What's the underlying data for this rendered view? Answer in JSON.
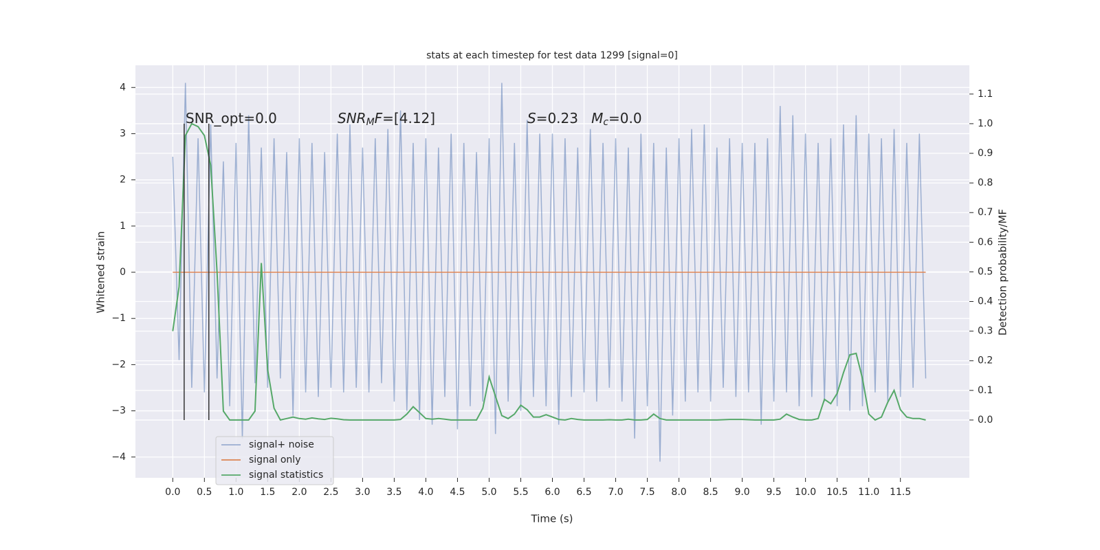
{
  "chart_data": {
    "type": "line",
    "title": "stats at each timestep for test data 1299 [signal=0]",
    "xlabel": "Time (s)",
    "ylabel": "Whitened strain",
    "y2label": "Detection probability/MF",
    "x": [
      0.0,
      0.1,
      0.2,
      0.3,
      0.4,
      0.5,
      0.6,
      0.7,
      0.8,
      0.9,
      1.0,
      1.1,
      1.2,
      1.3,
      1.4,
      1.5,
      1.6,
      1.7,
      1.8,
      1.9,
      2.0,
      2.1,
      2.2,
      2.3,
      2.4,
      2.5,
      2.6,
      2.7,
      2.8,
      2.9,
      3.0,
      3.1,
      3.2,
      3.3,
      3.4,
      3.5,
      3.6,
      3.7,
      3.8,
      3.9,
      4.0,
      4.1,
      4.2,
      4.3,
      4.4,
      4.5,
      4.6,
      4.7,
      4.8,
      4.9,
      5.0,
      5.1,
      5.2,
      5.3,
      5.4,
      5.5,
      5.6,
      5.7,
      5.8,
      5.9,
      6.0,
      6.1,
      6.2,
      6.3,
      6.4,
      6.5,
      6.6,
      6.7,
      6.8,
      6.9,
      7.0,
      7.1,
      7.2,
      7.3,
      7.4,
      7.5,
      7.6,
      7.7,
      7.8,
      7.9,
      8.0,
      8.1,
      8.2,
      8.3,
      8.4,
      8.5,
      8.6,
      8.7,
      8.8,
      8.9,
      9.0,
      9.1,
      9.2,
      9.3,
      9.4,
      9.5,
      9.6,
      9.7,
      9.8,
      9.9,
      10.0,
      10.1,
      10.2,
      10.3,
      10.4,
      10.5,
      10.6,
      10.7,
      10.8,
      10.9,
      11.0,
      11.1,
      11.2,
      11.3,
      11.4,
      11.5,
      11.6,
      11.7,
      11.8,
      11.9
    ],
    "series": [
      {
        "name": "signal+ noise",
        "color": "#4c72b0",
        "opacity": 0.5,
        "axis": "y",
        "values": [
          2.5,
          -1.9,
          4.1,
          -2.5,
          2.9,
          -2.6,
          3.2,
          -2.3,
          2.4,
          -2.9,
          2.8,
          -3.6,
          3.4,
          -2.4,
          2.7,
          -2.5,
          2.9,
          -2.3,
          2.6,
          -3.1,
          2.9,
          -2.6,
          2.8,
          -2.7,
          2.6,
          -2.5,
          3.0,
          -2.6,
          3.2,
          -2.5,
          2.7,
          -2.6,
          2.9,
          -2.4,
          3.1,
          -2.8,
          3.5,
          -3.0,
          2.8,
          -3.2,
          2.9,
          -3.3,
          2.7,
          -2.7,
          3.0,
          -3.4,
          2.8,
          -2.9,
          2.6,
          -2.8,
          2.9,
          -3.5,
          4.1,
          -2.8,
          2.8,
          -3.0,
          3.3,
          -2.7,
          3.0,
          -2.9,
          3.0,
          -3.3,
          2.9,
          -2.7,
          2.7,
          -2.6,
          3.1,
          -2.8,
          2.8,
          -2.5,
          2.9,
          -2.8,
          2.7,
          -3.6,
          3.0,
          -2.9,
          2.8,
          -4.1,
          2.7,
          -3.1,
          2.9,
          -2.8,
          3.1,
          -2.6,
          3.2,
          -2.8,
          2.7,
          -2.5,
          2.9,
          -2.7,
          2.8,
          -2.6,
          2.8,
          -3.3,
          2.9,
          -2.8,
          3.6,
          -2.6,
          3.4,
          -2.9,
          3.0,
          -2.7,
          2.8,
          -2.8,
          2.9,
          -2.9,
          3.2,
          -3.0,
          3.4,
          -2.9,
          3.0,
          -2.6,
          2.9,
          -2.8,
          3.1,
          -2.7,
          2.8,
          -2.5,
          3.0,
          -2.3
        ]
      },
      {
        "name": "signal only",
        "color": "#dd8452",
        "opacity": 1,
        "axis": "y",
        "values": [
          0,
          0,
          0,
          0,
          0,
          0,
          0,
          0,
          0,
          0,
          0,
          0,
          0,
          0,
          0,
          0,
          0,
          0,
          0,
          0,
          0,
          0,
          0,
          0,
          0,
          0,
          0,
          0,
          0,
          0,
          0,
          0,
          0,
          0,
          0,
          0,
          0,
          0,
          0,
          0,
          0,
          0,
          0,
          0,
          0,
          0,
          0,
          0,
          0,
          0,
          0,
          0,
          0,
          0,
          0,
          0,
          0,
          0,
          0,
          0,
          0,
          0,
          0,
          0,
          0,
          0,
          0,
          0,
          0,
          0,
          0,
          0,
          0,
          0,
          0,
          0,
          0,
          0,
          0,
          0,
          0,
          0,
          0,
          0,
          0,
          0,
          0,
          0,
          0,
          0,
          0,
          0,
          0,
          0,
          0,
          0,
          0,
          0,
          0,
          0,
          0,
          0,
          0,
          0,
          0,
          0,
          0,
          0,
          0,
          0,
          0,
          0,
          0,
          0,
          0,
          0,
          0,
          0,
          0,
          0
        ]
      },
      {
        "name": "signal statistics",
        "color": "#55a868",
        "opacity": 1,
        "axis": "y2",
        "values": [
          0.3,
          0.45,
          0.96,
          1.0,
          0.99,
          0.96,
          0.86,
          0.5,
          0.03,
          0.0,
          0.0,
          0.0,
          0.0,
          0.03,
          0.53,
          0.17,
          0.04,
          0.0,
          0.005,
          0.01,
          0.005,
          0.003,
          0.007,
          0.004,
          0.002,
          0.006,
          0.004,
          0.001,
          0.0,
          0.0,
          0.0,
          0.0,
          0.0,
          0.0,
          0.0,
          0.0,
          0.002,
          0.02,
          0.045,
          0.025,
          0.005,
          0.003,
          0.005,
          0.003,
          0.0,
          0.0,
          0.0,
          0.0,
          0.0,
          0.04,
          0.145,
          0.08,
          0.015,
          0.005,
          0.02,
          0.05,
          0.035,
          0.01,
          0.01,
          0.018,
          0.01,
          0.002,
          0.0,
          0.005,
          0.002,
          0.0,
          0.0,
          0.0,
          0.0,
          0.001,
          0.0,
          0.0,
          0.003,
          0.0,
          0.0,
          0.002,
          0.02,
          0.005,
          0.0,
          0.0,
          0.0,
          0.0,
          0.0,
          0.0,
          0.0,
          0.0,
          0.0,
          0.001,
          0.002,
          0.002,
          0.002,
          0.001,
          0.0,
          0.0,
          0.0,
          0.0,
          0.003,
          0.02,
          0.01,
          0.002,
          0.0,
          0.0,
          0.005,
          0.07,
          0.055,
          0.09,
          0.16,
          0.22,
          0.225,
          0.14,
          0.02,
          0.0,
          0.01,
          0.06,
          0.1,
          0.035,
          0.01,
          0.005,
          0.005,
          0.0
        ]
      }
    ],
    "vlines": {
      "x": [
        0.18,
        0.57
      ],
      "ymin": 0,
      "ymax": 1,
      "axis": "y2",
      "color": "#333333"
    },
    "annotations": [
      [
        {
          "text": "SNR_opt=0.0",
          "italic": false,
          "sub": false
        }
      ],
      [
        {
          "text": "SNR",
          "italic": true,
          "sub": false
        },
        {
          "text": "M",
          "italic": true,
          "sub": true
        },
        {
          "text": "F",
          "italic": true,
          "sub": false
        },
        {
          "text": "=[4.12]",
          "italic": false,
          "sub": false
        }
      ],
      [
        {
          "text": "S",
          "italic": true,
          "sub": false
        },
        {
          "text": "=0.23   ",
          "italic": false,
          "sub": false
        },
        {
          "text": "M",
          "italic": true,
          "sub": false
        },
        {
          "text": "c",
          "italic": true,
          "sub": true
        },
        {
          "text": "=0.0",
          "italic": false,
          "sub": false
        }
      ]
    ],
    "xlim": [
      -0.59,
      12.59
    ],
    "xticks": [
      {
        "value": 0,
        "label": "0.0"
      },
      0.5,
      {
        "value": 1,
        "label": "1.0"
      },
      1.5,
      {
        "value": 2,
        "label": "2.0"
      },
      2.5,
      {
        "value": 3,
        "label": "3.0"
      },
      3.5,
      {
        "value": 4,
        "label": "4.0"
      },
      4.5,
      {
        "value": 5,
        "label": "5.0"
      },
      5.5,
      {
        "value": 6,
        "label": "6.0"
      },
      6.5,
      {
        "value": 7,
        "label": "7.0"
      },
      7.5,
      {
        "value": 8,
        "label": "8.0"
      },
      8.5,
      {
        "value": 9,
        "label": "9.0"
      },
      9.5,
      {
        "value": 10,
        "label": "10.0"
      },
      10.5,
      {
        "value": 11,
        "label": "11.0"
      },
      11.5
    ],
    "ylim": [
      -4.45,
      4.48
    ],
    "yticks": [
      {
        "value": -4,
        "label": "−4"
      },
      {
        "value": -3,
        "label": "−3"
      },
      {
        "value": -2,
        "label": "−2"
      },
      {
        "value": -1,
        "label": "−1"
      },
      0,
      1,
      2,
      3,
      4
    ],
    "y2lim": [
      -0.195,
      1.197
    ],
    "y2ticks": [
      {
        "value": 0,
        "label": "0.0"
      },
      0.1,
      0.2,
      0.3,
      0.4,
      0.5,
      0.6,
      0.7,
      0.8,
      0.9,
      {
        "value": 1,
        "label": "1.0"
      },
      1.1
    ],
    "grid": true,
    "legend": "lower left"
  }
}
